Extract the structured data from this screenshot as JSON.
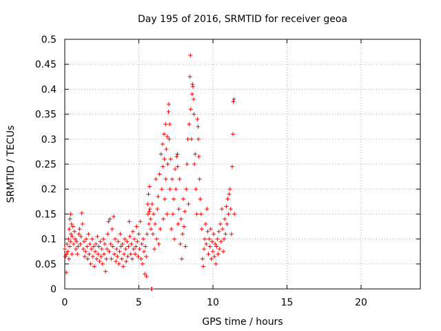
{
  "chart_data": {
    "type": "scatter",
    "title": "Day 195 of 2016, SRMTID for receiver geoa",
    "xlabel": "GPS time / hours",
    "ylabel": "SRMTID / TECUs",
    "xlim": [
      0,
      24
    ],
    "ylim": [
      0,
      0.5
    ],
    "x_ticks": [
      0,
      5,
      10,
      15,
      20
    ],
    "x_tick_labels": [
      "0",
      "5",
      "10",
      "15",
      "20"
    ],
    "y_ticks": [
      0,
      0.05,
      0.1,
      0.15,
      0.2,
      0.25,
      0.3,
      0.35,
      0.4,
      0.45,
      0.5
    ],
    "y_tick_labels": [
      "0",
      "0.05",
      "0.1",
      "0.15",
      "0.2",
      "0.25",
      "0.3",
      "0.35",
      "0.4",
      "0.45",
      "0.5"
    ],
    "grid": true,
    "marker": "+",
    "color": "#ff0000",
    "series": [
      {
        "name": "SRMTID",
        "points": [
          [
            0.0,
            0.08
          ],
          [
            0.05,
            0.065
          ],
          [
            0.1,
            0.033
          ],
          [
            0.12,
            0.07
          ],
          [
            0.15,
            0.09
          ],
          [
            0.2,
            0.075
          ],
          [
            0.25,
            0.1
          ],
          [
            0.28,
            0.06
          ],
          [
            0.3,
            0.12
          ],
          [
            0.33,
            0.085
          ],
          [
            0.35,
            0.14
          ],
          [
            0.38,
            0.095
          ],
          [
            0.4,
            0.15
          ],
          [
            0.42,
            0.11
          ],
          [
            0.45,
            0.13
          ],
          [
            0.48,
            0.07
          ],
          [
            0.5,
            0.105
          ],
          [
            0.55,
            0.125
          ],
          [
            0.6,
            0.09
          ],
          [
            0.65,
            0.115
          ],
          [
            0.7,
            0.1
          ],
          [
            0.75,
            0.08
          ],
          [
            0.8,
            0.095
          ],
          [
            0.85,
            0.07
          ],
          [
            0.9,
            0.085
          ],
          [
            0.95,
            0.11
          ],
          [
            1.0,
            0.12
          ],
          [
            1.05,
            0.09
          ],
          [
            1.1,
            0.105
          ],
          [
            1.15,
            0.152
          ],
          [
            1.2,
            0.13
          ],
          [
            1.25,
            0.08
          ],
          [
            1.3,
            0.095
          ],
          [
            1.35,
            0.065
          ],
          [
            1.4,
            0.075
          ],
          [
            1.45,
            0.1
          ],
          [
            1.5,
            0.085
          ],
          [
            1.55,
            0.06
          ],
          [
            1.6,
            0.11
          ],
          [
            1.65,
            0.07
          ],
          [
            1.7,
            0.09
          ],
          [
            1.75,
            0.05
          ],
          [
            1.8,
            0.08
          ],
          [
            1.85,
            0.1
          ],
          [
            1.9,
            0.065
          ],
          [
            1.95,
            0.085
          ],
          [
            2.0,
            0.045
          ],
          [
            2.05,
            0.075
          ],
          [
            2.1,
            0.09
          ],
          [
            2.15,
            0.06
          ],
          [
            2.2,
            0.105
          ],
          [
            2.25,
            0.07
          ],
          [
            2.3,
            0.085
          ],
          [
            2.35,
            0.055
          ],
          [
            2.4,
            0.095
          ],
          [
            2.45,
            0.065
          ],
          [
            2.5,
            0.08
          ],
          [
            2.55,
            0.05
          ],
          [
            2.6,
            0.1
          ],
          [
            2.65,
            0.07
          ],
          [
            2.7,
            0.09
          ],
          [
            2.75,
            0.035
          ],
          [
            2.8,
            0.06
          ],
          [
            2.85,
            0.08
          ],
          [
            2.9,
            0.11
          ],
          [
            2.95,
            0.135
          ],
          [
            3.0,
            0.075
          ],
          [
            3.05,
            0.14
          ],
          [
            3.1,
            0.09
          ],
          [
            3.15,
            0.06
          ],
          [
            3.2,
            0.12
          ],
          [
            3.25,
            0.085
          ],
          [
            3.3,
            0.145
          ],
          [
            3.35,
            0.07
          ],
          [
            3.4,
            0.1
          ],
          [
            3.45,
            0.055
          ],
          [
            3.5,
            0.08
          ],
          [
            3.55,
            0.065
          ],
          [
            3.6,
            0.095
          ],
          [
            3.65,
            0.05
          ],
          [
            3.7,
            0.075
          ],
          [
            3.75,
            0.11
          ],
          [
            3.8,
            0.085
          ],
          [
            3.85,
            0.06
          ],
          [
            3.9,
            0.09
          ],
          [
            3.95,
            0.045
          ],
          [
            4.0,
            0.07
          ],
          [
            4.05,
            0.1
          ],
          [
            4.1,
            0.08
          ],
          [
            4.15,
            0.055
          ],
          [
            4.2,
            0.095
          ],
          [
            4.25,
            0.065
          ],
          [
            4.3,
            0.085
          ],
          [
            4.35,
            0.135
          ],
          [
            4.4,
            0.105
          ],
          [
            4.45,
            0.07
          ],
          [
            4.5,
            0.09
          ],
          [
            4.55,
            0.06
          ],
          [
            4.6,
            0.115
          ],
          [
            4.65,
            0.08
          ],
          [
            4.7,
            0.1
          ],
          [
            4.75,
            0.07
          ],
          [
            4.8,
            0.085
          ],
          [
            4.85,
            0.125
          ],
          [
            4.9,
            0.095
          ],
          [
            4.95,
            0.065
          ],
          [
            5.0,
            0.11
          ],
          [
            5.05,
            0.08
          ],
          [
            5.1,
            0.135
          ],
          [
            5.15,
            0.06
          ],
          [
            5.2,
            0.09
          ],
          [
            5.25,
            0.05
          ],
          [
            5.3,
            0.1
          ],
          [
            5.35,
            0.075
          ],
          [
            5.4,
            0.03
          ],
          [
            5.45,
            0.085
          ],
          [
            5.5,
            0.065
          ],
          [
            5.52,
            0.025
          ],
          [
            5.55,
            0.11
          ],
          [
            5.6,
            0.17
          ],
          [
            5.62,
            0.15
          ],
          [
            5.65,
            0.19
          ],
          [
            5.68,
            0.13
          ],
          [
            5.7,
            0.155
          ],
          [
            5.72,
            0.205
          ],
          [
            5.75,
            0.16
          ],
          [
            5.8,
            0.14
          ],
          [
            5.82,
            0.12
          ],
          [
            5.85,
            0.0
          ],
          [
            5.88,
            0.0
          ],
          [
            5.9,
            0.17
          ],
          [
            5.95,
            0.11
          ],
          [
            6.0,
            0.15
          ],
          [
            6.05,
            0.08
          ],
          [
            6.1,
            0.13
          ],
          [
            6.15,
            0.22
          ],
          [
            6.2,
            0.1
          ],
          [
            6.25,
            0.16
          ],
          [
            6.3,
            0.185
          ],
          [
            6.35,
            0.09
          ],
          [
            6.4,
            0.23
          ],
          [
            6.45,
            0.12
          ],
          [
            6.5,
            0.27
          ],
          [
            6.55,
            0.2
          ],
          [
            6.6,
            0.29
          ],
          [
            6.62,
            0.245
          ],
          [
            6.65,
            0.14
          ],
          [
            6.7,
            0.31
          ],
          [
            6.72,
            0.26
          ],
          [
            6.75,
            0.18
          ],
          [
            6.8,
            0.33
          ],
          [
            6.82,
            0.22
          ],
          [
            6.85,
            0.28
          ],
          [
            6.9,
            0.15
          ],
          [
            6.92,
            0.305
          ],
          [
            6.95,
            0.25
          ],
          [
            7.0,
            0.355
          ],
          [
            7.02,
            0.37
          ],
          [
            7.05,
            0.3
          ],
          [
            7.08,
            0.33
          ],
          [
            7.1,
            0.2
          ],
          [
            7.15,
            0.26
          ],
          [
            7.2,
            0.12
          ],
          [
            7.25,
            0.22
          ],
          [
            7.3,
            0.15
          ],
          [
            7.35,
            0.18
          ],
          [
            7.4,
            0.1
          ],
          [
            7.45,
            0.24
          ],
          [
            7.5,
            0.2
          ],
          [
            7.55,
            0.265
          ],
          [
            7.6,
            0.27
          ],
          [
            7.62,
            0.245
          ],
          [
            7.65,
            0.13
          ],
          [
            7.7,
            0.16
          ],
          [
            7.75,
            0.22
          ],
          [
            7.8,
            0.09
          ],
          [
            7.85,
            0.14
          ],
          [
            7.9,
            0.06
          ],
          [
            7.95,
            0.11
          ],
          [
            8.0,
            0.18
          ],
          [
            8.05,
            0.125
          ],
          [
            8.1,
            0.155
          ],
          [
            8.15,
            0.085
          ],
          [
            8.2,
            0.2
          ],
          [
            8.25,
            0.25
          ],
          [
            8.3,
            0.3
          ],
          [
            8.35,
            0.17
          ],
          [
            8.4,
            0.33
          ],
          [
            8.45,
            0.425
          ],
          [
            8.48,
            0.468
          ],
          [
            8.5,
            0.36
          ],
          [
            8.55,
            0.3
          ],
          [
            8.6,
            0.39
          ],
          [
            8.62,
            0.41
          ],
          [
            8.65,
            0.405
          ],
          [
            8.7,
            0.38
          ],
          [
            8.72,
            0.35
          ],
          [
            8.75,
            0.25
          ],
          [
            8.8,
            0.27
          ],
          [
            8.85,
            0.2
          ],
          [
            8.9,
            0.15
          ],
          [
            8.95,
            0.34
          ],
          [
            9.0,
            0.325
          ],
          [
            9.02,
            0.3
          ],
          [
            9.05,
            0.265
          ],
          [
            9.1,
            0.22
          ],
          [
            9.15,
            0.18
          ],
          [
            9.2,
            0.15
          ],
          [
            9.25,
            0.12
          ],
          [
            9.3,
            0.06
          ],
          [
            9.35,
            0.045
          ],
          [
            9.4,
            0.08
          ],
          [
            9.45,
            0.1
          ],
          [
            9.5,
            0.13
          ],
          [
            9.55,
            0.09
          ],
          [
            9.6,
            0.16
          ],
          [
            9.65,
            0.115
          ],
          [
            9.7,
            0.07
          ],
          [
            9.75,
            0.1
          ],
          [
            9.8,
            0.085
          ],
          [
            9.85,
            0.12
          ],
          [
            9.9,
            0.06
          ],
          [
            9.95,
            0.095
          ],
          [
            10.0,
            0.075
          ],
          [
            10.05,
            0.11
          ],
          [
            10.1,
            0.065
          ],
          [
            10.15,
            0.09
          ],
          [
            10.2,
            0.05
          ],
          [
            10.25,
            0.085
          ],
          [
            10.3,
            0.1
          ],
          [
            10.35,
            0.07
          ],
          [
            10.4,
            0.115
          ],
          [
            10.45,
            0.08
          ],
          [
            10.5,
            0.13
          ],
          [
            10.55,
            0.095
          ],
          [
            10.6,
            0.16
          ],
          [
            10.65,
            0.12
          ],
          [
            10.7,
            0.075
          ],
          [
            10.75,
            0.1
          ],
          [
            10.8,
            0.14
          ],
          [
            10.85,
            0.11
          ],
          [
            10.9,
            0.165
          ],
          [
            10.95,
            0.13
          ],
          [
            11.0,
            0.18
          ],
          [
            11.05,
            0.15
          ],
          [
            11.1,
            0.19
          ],
          [
            11.15,
            0.2
          ],
          [
            11.2,
            0.16
          ],
          [
            11.25,
            0.11
          ],
          [
            11.3,
            0.245
          ],
          [
            11.35,
            0.31
          ],
          [
            11.38,
            0.375
          ],
          [
            11.42,
            0.38
          ],
          [
            11.45,
            0.15
          ]
        ]
      }
    ]
  }
}
